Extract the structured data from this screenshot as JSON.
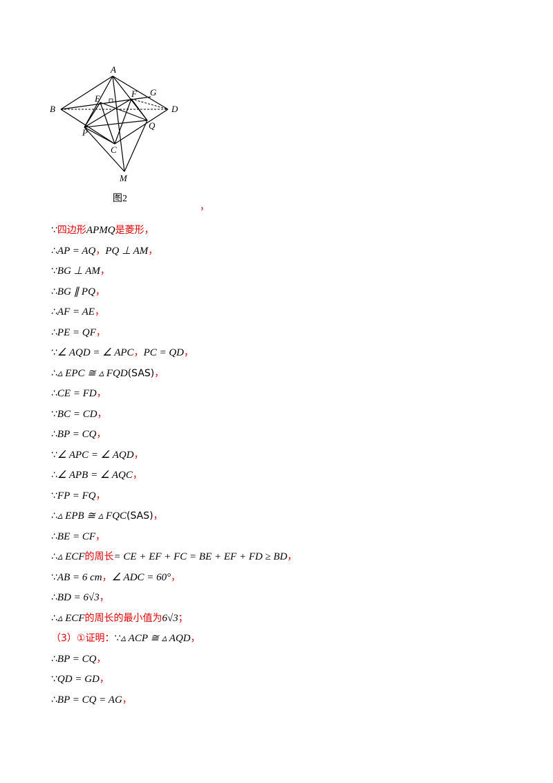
{
  "figure": {
    "points": {
      "A": "A",
      "B": "B",
      "D": "D",
      "E": "E",
      "F": "F",
      "G": "G",
      "P": "P",
      "Q": "Q",
      "C": "C",
      "M": "M"
    },
    "caption": "图2"
  },
  "stray_mark": "，",
  "lines": [
    [
      [
        "k",
        "∵"
      ],
      [
        "r",
        "四边形"
      ],
      [
        "m",
        "APMQ"
      ],
      [
        "r",
        "是菱形，"
      ]
    ],
    [
      [
        "k",
        "∴"
      ],
      [
        "m",
        "AP = AQ"
      ],
      [
        "r",
        "，"
      ],
      [
        "m",
        "PQ ⊥ AM"
      ],
      [
        "r",
        "，"
      ]
    ],
    [
      [
        "k",
        "∵"
      ],
      [
        "m",
        "BG ⊥ AM"
      ],
      [
        "r",
        "，"
      ]
    ],
    [
      [
        "k",
        "∴"
      ],
      [
        "m",
        "BG ∥ PQ"
      ],
      [
        "r",
        "，"
      ]
    ],
    [
      [
        "k",
        "∴"
      ],
      [
        "m",
        "AF = AE"
      ],
      [
        "r",
        "，"
      ]
    ],
    [
      [
        "k",
        "∴"
      ],
      [
        "m",
        "PE = QF"
      ],
      [
        "r",
        "，"
      ]
    ],
    [
      [
        "k",
        "∵"
      ],
      [
        "m",
        "∠ AQD = ∠ APC"
      ],
      [
        "r",
        "，"
      ],
      [
        "m",
        "PC = QD"
      ],
      [
        "r",
        "，"
      ]
    ],
    [
      [
        "k",
        "∴"
      ],
      [
        "m",
        "▵ EPC ≅ ▵ FQD"
      ],
      [
        "k",
        "(SAS)"
      ],
      [
        "r",
        "，"
      ]
    ],
    [
      [
        "k",
        "∴"
      ],
      [
        "m",
        "CE = FD"
      ],
      [
        "r",
        "，"
      ]
    ],
    [
      [
        "k",
        "∵"
      ],
      [
        "m",
        "BC = CD"
      ],
      [
        "r",
        "，"
      ]
    ],
    [
      [
        "k",
        "∴"
      ],
      [
        "m",
        "BP = CQ"
      ],
      [
        "r",
        "，"
      ]
    ],
    [
      [
        "k",
        "∵"
      ],
      [
        "m",
        "∠ APC = ∠ AQD"
      ],
      [
        "r",
        "，"
      ]
    ],
    [
      [
        "k",
        "∴"
      ],
      [
        "m",
        "∠ APB = ∠ AQC"
      ],
      [
        "r",
        "，"
      ]
    ],
    [
      [
        "k",
        "∵"
      ],
      [
        "m",
        "FP = FQ"
      ],
      [
        "r",
        "，"
      ]
    ],
    [
      [
        "k",
        "∴"
      ],
      [
        "m",
        "▵ EPB ≅ ▵ FQC"
      ],
      [
        "k",
        "(SAS)"
      ],
      [
        "r",
        "，"
      ]
    ],
    [
      [
        "k",
        "∴"
      ],
      [
        "m",
        "BE = CF"
      ],
      [
        "r",
        "，"
      ]
    ],
    [
      [
        "k",
        "∴"
      ],
      [
        "m",
        "▵ ECF"
      ],
      [
        "r",
        "的周长"
      ],
      [
        "m",
        "= CE + EF + FC = BE + EF + FD ≥ BD"
      ],
      [
        "r",
        "，"
      ]
    ],
    [
      [
        "k",
        "∵"
      ],
      [
        "m",
        "AB = 6 cm"
      ],
      [
        "r",
        "，"
      ],
      [
        "m",
        "∠ ADC = 60°"
      ],
      [
        "r",
        "，"
      ]
    ],
    [
      [
        "k",
        "∴"
      ],
      [
        "m",
        "BD = 6√3"
      ],
      [
        "r",
        "，"
      ]
    ],
    [
      [
        "k",
        "∴"
      ],
      [
        "m",
        "▵ ECF"
      ],
      [
        "r",
        "的周长的最小值为"
      ],
      [
        "m",
        "6√3"
      ],
      [
        "r",
        "；"
      ]
    ],
    [
      [
        "r",
        "（3）①证明："
      ],
      [
        "k",
        "∵"
      ],
      [
        "m",
        "▵ ACP ≅ ▵ AQD"
      ],
      [
        "r",
        "，"
      ]
    ],
    [
      [
        "k",
        "∴"
      ],
      [
        "m",
        "BP = CQ"
      ],
      [
        "r",
        "，"
      ]
    ],
    [
      [
        "k",
        "∵"
      ],
      [
        "m",
        "QD = GD"
      ],
      [
        "r",
        "，"
      ]
    ],
    [
      [
        "k",
        "∴"
      ],
      [
        "m",
        "BP = CQ = AG"
      ],
      [
        "r",
        "，"
      ]
    ]
  ]
}
